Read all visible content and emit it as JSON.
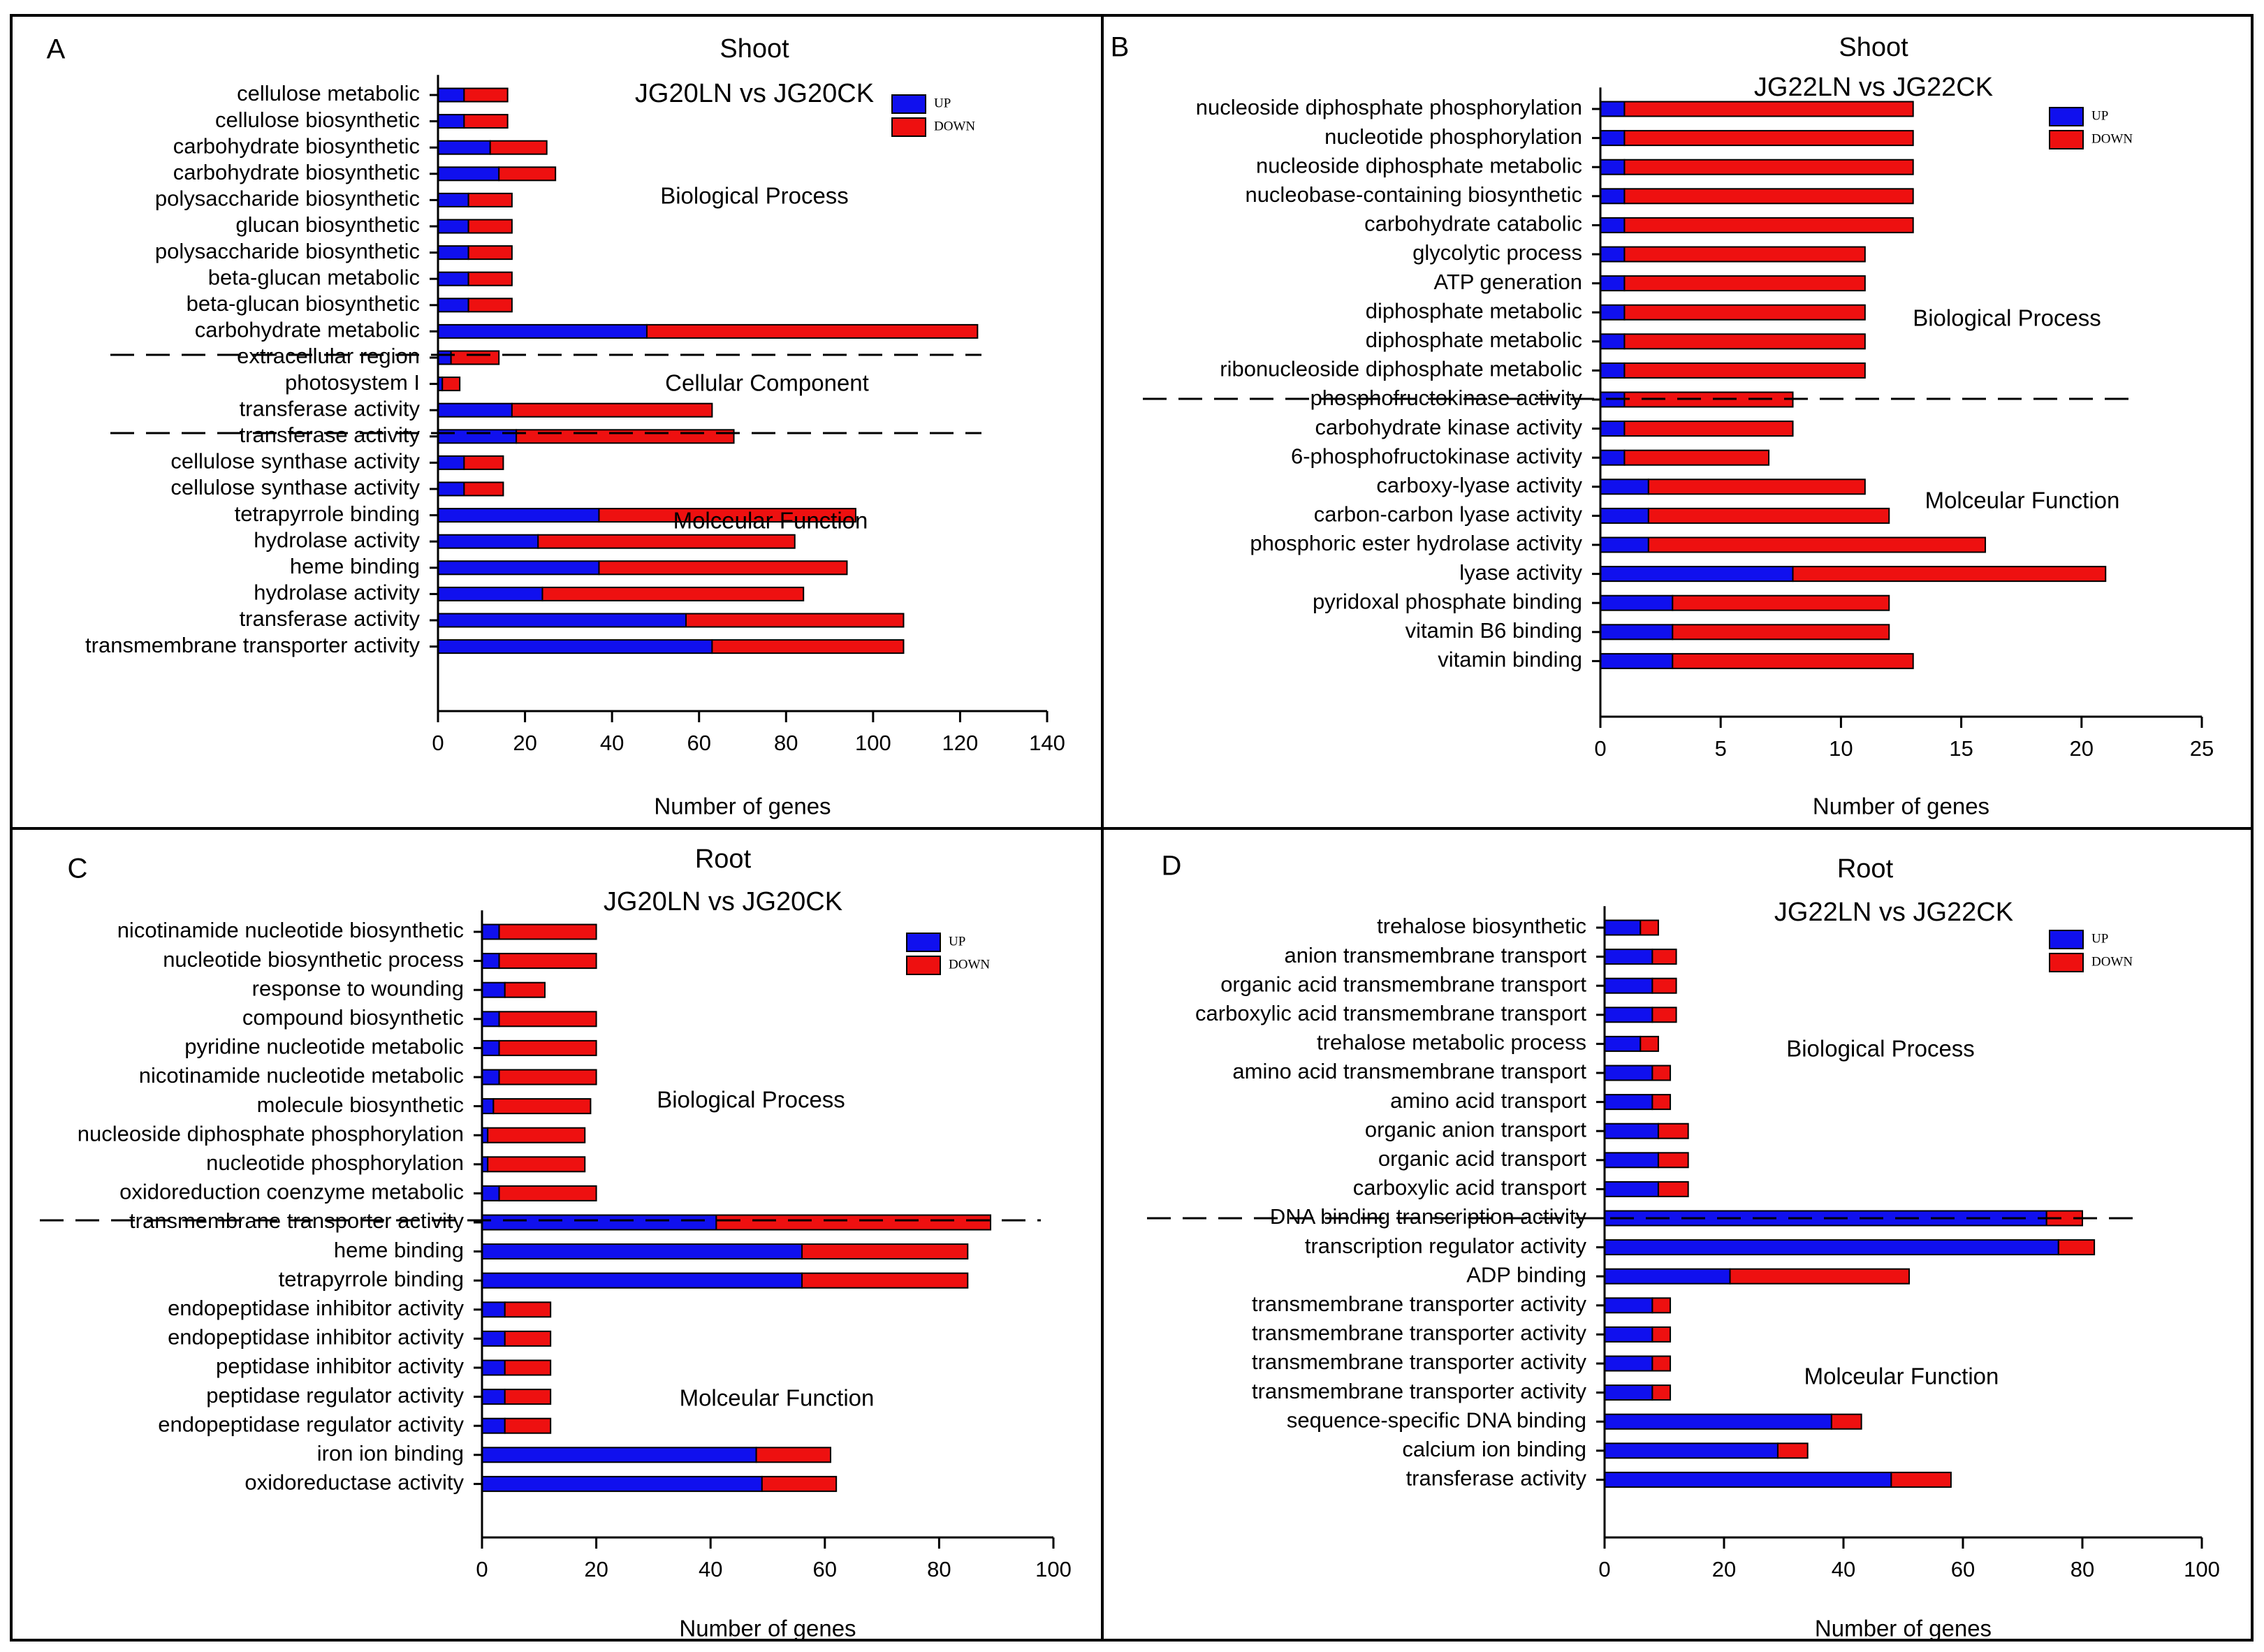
{
  "colors": {
    "up": "#1010ee",
    "down": "#ee1010",
    "axis": "#000000"
  },
  "chart_data": [
    {
      "type": "bar",
      "orientation": "horizontal",
      "stacked": true,
      "panel": "A",
      "title": "Shoot",
      "subtitle": "JG20LN vs JG20CK",
      "xlabel": "Number of genes",
      "xlim": [
        0,
        140
      ],
      "xticks": [
        0,
        20,
        40,
        60,
        80,
        100,
        120,
        140
      ],
      "legend": {
        "up": "UP",
        "down": "DOWN",
        "position": "top-right"
      },
      "groups": [
        {
          "name": "Biological Process",
          "categories": [
            {
              "label": "cellulose metabolic",
              "up": 6,
              "down": 10
            },
            {
              "label": "cellulose biosynthetic",
              "up": 6,
              "down": 10
            },
            {
              "label": "carbohydrate biosynthetic",
              "up": 12,
              "down": 13
            },
            {
              "label": "carbohydrate biosynthetic",
              "up": 14,
              "down": 13
            },
            {
              "label": "polysaccharide biosynthetic",
              "up": 7,
              "down": 10
            },
            {
              "label": "glucan biosynthetic",
              "up": 7,
              "down": 10
            },
            {
              "label": "polysaccharide biosynthetic",
              "up": 7,
              "down": 10
            },
            {
              "label": "beta-glucan metabolic",
              "up": 7,
              "down": 10
            },
            {
              "label": "beta-glucan biosynthetic",
              "up": 7,
              "down": 10
            },
            {
              "label": "carbohydrate metabolic",
              "up": 48,
              "down": 76
            }
          ]
        },
        {
          "name": "Cellular Component",
          "categories": [
            {
              "label": "extracellular region",
              "up": 3,
              "down": 11
            },
            {
              "label": "photosystem I",
              "up": 1,
              "down": 4
            }
          ]
        },
        {
          "name": "Molceular Function",
          "categories": [
            {
              "label": "transferase activity",
              "up": 17,
              "down": 46
            },
            {
              "label": "transferase activity",
              "up": 18,
              "down": 50
            },
            {
              "label": "cellulose synthase activity",
              "up": 6,
              "down": 9
            },
            {
              "label": "cellulose synthase activity",
              "up": 6,
              "down": 9
            },
            {
              "label": "tetrapyrrole binding",
              "up": 37,
              "down": 59
            },
            {
              "label": "hydrolase activity",
              "up": 23,
              "down": 59
            },
            {
              "label": "heme binding",
              "up": 37,
              "down": 57
            },
            {
              "label": "hydrolase activity",
              "up": 24,
              "down": 60
            },
            {
              "label": "transferase activity",
              "up": 57,
              "down": 50
            },
            {
              "label": "transmembrane transporter activity",
              "up": 63,
              "down": 44
            }
          ]
        }
      ]
    },
    {
      "type": "bar",
      "orientation": "horizontal",
      "stacked": true,
      "panel": "B",
      "title": "Shoot",
      "subtitle": "JG22LN vs JG22CK",
      "xlabel": "Number of genes",
      "xlim": [
        0,
        25
      ],
      "xticks": [
        0,
        5,
        10,
        15,
        20,
        25
      ],
      "legend": {
        "up": "UP",
        "down": "DOWN",
        "position": "top-right"
      },
      "groups": [
        {
          "name": "Biological Process",
          "categories": [
            {
              "label": "nucleoside diphosphate phosphorylation",
              "up": 1,
              "down": 12
            },
            {
              "label": "nucleotide phosphorylation",
              "up": 1,
              "down": 12
            },
            {
              "label": "nucleoside diphosphate metabolic",
              "up": 1,
              "down": 12
            },
            {
              "label": "nucleobase-containing biosynthetic",
              "up": 1,
              "down": 12
            },
            {
              "label": "carbohydrate catabolic",
              "up": 1,
              "down": 12
            },
            {
              "label": "glycolytic process",
              "up": 1,
              "down": 10
            },
            {
              "label": "ATP generation",
              "up": 1,
              "down": 10
            },
            {
              "label": "diphosphate metabolic",
              "up": 1,
              "down": 10
            },
            {
              "label": "diphosphate metabolic",
              "up": 1,
              "down": 10
            },
            {
              "label": "ribonucleoside diphosphate metabolic",
              "up": 1,
              "down": 10
            }
          ]
        },
        {
          "name": "Molceular Function",
          "categories": [
            {
              "label": "phosphofructokinase activity",
              "up": 1,
              "down": 7
            },
            {
              "label": "carbohydrate kinase activity",
              "up": 1,
              "down": 7
            },
            {
              "label": "6-phosphofructokinase activity",
              "up": 1,
              "down": 6
            },
            {
              "label": "carboxy-lyase activity",
              "up": 2,
              "down": 9
            },
            {
              "label": "carbon-carbon lyase activity",
              "up": 2,
              "down": 10
            },
            {
              "label": "phosphoric ester hydrolase activity",
              "up": 2,
              "down": 14
            },
            {
              "label": "lyase activity",
              "up": 8,
              "down": 13
            },
            {
              "label": "pyridoxal phosphate binding",
              "up": 3,
              "down": 9
            },
            {
              "label": "vitamin B6 binding",
              "up": 3,
              "down": 9
            },
            {
              "label": "vitamin binding",
              "up": 3,
              "down": 10
            }
          ]
        }
      ]
    },
    {
      "type": "bar",
      "orientation": "horizontal",
      "stacked": true,
      "panel": "C",
      "title": "Root",
      "subtitle": "JG20LN vs JG20CK",
      "xlabel": "Number of genes",
      "xlim": [
        0,
        100
      ],
      "xticks": [
        0,
        20,
        40,
        60,
        80,
        100
      ],
      "legend": {
        "up": "UP",
        "down": "DOWN",
        "position": "top-right"
      },
      "groups": [
        {
          "name": "Biological Process",
          "categories": [
            {
              "label": "nicotinamide nucleotide biosynthetic",
              "up": 3,
              "down": 17
            },
            {
              "label": "nucleotide biosynthetic process",
              "up": 3,
              "down": 17
            },
            {
              "label": "response to wounding",
              "up": 4,
              "down": 7
            },
            {
              "label": "compound biosynthetic",
              "up": 3,
              "down": 17
            },
            {
              "label": "pyridine nucleotide metabolic",
              "up": 3,
              "down": 17
            },
            {
              "label": "nicotinamide nucleotide metabolic",
              "up": 3,
              "down": 17
            },
            {
              "label": "molecule biosynthetic",
              "up": 2,
              "down": 17
            },
            {
              "label": "nucleoside diphosphate phosphorylation",
              "up": 1,
              "down": 17
            },
            {
              "label": "nucleotide phosphorylation",
              "up": 1,
              "down": 17
            },
            {
              "label": "oxidoreduction coenzyme metabolic",
              "up": 3,
              "down": 17
            }
          ]
        },
        {
          "name": "Molceular Function",
          "categories": [
            {
              "label": "transmembrane transporter activity",
              "up": 41,
              "down": 48
            },
            {
              "label": "heme binding",
              "up": 56,
              "down": 29
            },
            {
              "label": "tetrapyrrole binding",
              "up": 56,
              "down": 29
            },
            {
              "label": "endopeptidase inhibitor activity",
              "up": 4,
              "down": 8
            },
            {
              "label": "endopeptidase inhibitor activity",
              "up": 4,
              "down": 8
            },
            {
              "label": "peptidase inhibitor activity",
              "up": 4,
              "down": 8
            },
            {
              "label": "peptidase regulator activity",
              "up": 4,
              "down": 8
            },
            {
              "label": "endopeptidase regulator activity",
              "up": 4,
              "down": 8
            },
            {
              "label": "iron ion binding",
              "up": 48,
              "down": 13
            },
            {
              "label": "oxidoreductase activity",
              "up": 49,
              "down": 13
            }
          ]
        }
      ]
    },
    {
      "type": "bar",
      "orientation": "horizontal",
      "stacked": true,
      "panel": "D",
      "title": "Root",
      "subtitle": "JG22LN vs JG22CK",
      "xlabel": "Number of genes",
      "xlim": [
        0,
        100
      ],
      "xticks": [
        0,
        20,
        40,
        60,
        80,
        100
      ],
      "legend": {
        "up": "UP",
        "down": "DOWN",
        "position": "top-right"
      },
      "groups": [
        {
          "name": "Biological Process",
          "categories": [
            {
              "label": "trehalose biosynthetic",
              "up": 6,
              "down": 3
            },
            {
              "label": "anion transmembrane transport",
              "up": 8,
              "down": 4
            },
            {
              "label": "organic acid transmembrane transport",
              "up": 8,
              "down": 4
            },
            {
              "label": "carboxylic acid transmembrane transport",
              "up": 8,
              "down": 4
            },
            {
              "label": "trehalose metabolic process",
              "up": 6,
              "down": 3
            },
            {
              "label": "amino acid transmembrane transport",
              "up": 8,
              "down": 3
            },
            {
              "label": "amino acid transport",
              "up": 8,
              "down": 3
            },
            {
              "label": "organic anion transport",
              "up": 9,
              "down": 5
            },
            {
              "label": "organic acid transport",
              "up": 9,
              "down": 5
            },
            {
              "label": "carboxylic acid transport",
              "up": 9,
              "down": 5
            }
          ]
        },
        {
          "name": "Molceular Function",
          "categories": [
            {
              "label": "DNA binding transcription activity",
              "up": 74,
              "down": 6
            },
            {
              "label": "transcription regulator activity",
              "up": 76,
              "down": 6
            },
            {
              "label": "ADP binding",
              "up": 21,
              "down": 30
            },
            {
              "label": "transmembrane transporter activity",
              "up": 8,
              "down": 3
            },
            {
              "label": "transmembrane transporter activity",
              "up": 8,
              "down": 3
            },
            {
              "label": "transmembrane transporter activity",
              "up": 8,
              "down": 3
            },
            {
              "label": "transmembrane transporter activity",
              "up": 8,
              "down": 3
            },
            {
              "label": "sequence-specific DNA binding",
              "up": 38,
              "down": 5
            },
            {
              "label": "calcium ion binding",
              "up": 29,
              "down": 5
            },
            {
              "label": "transferase activity",
              "up": 48,
              "down": 10
            }
          ]
        }
      ]
    }
  ]
}
